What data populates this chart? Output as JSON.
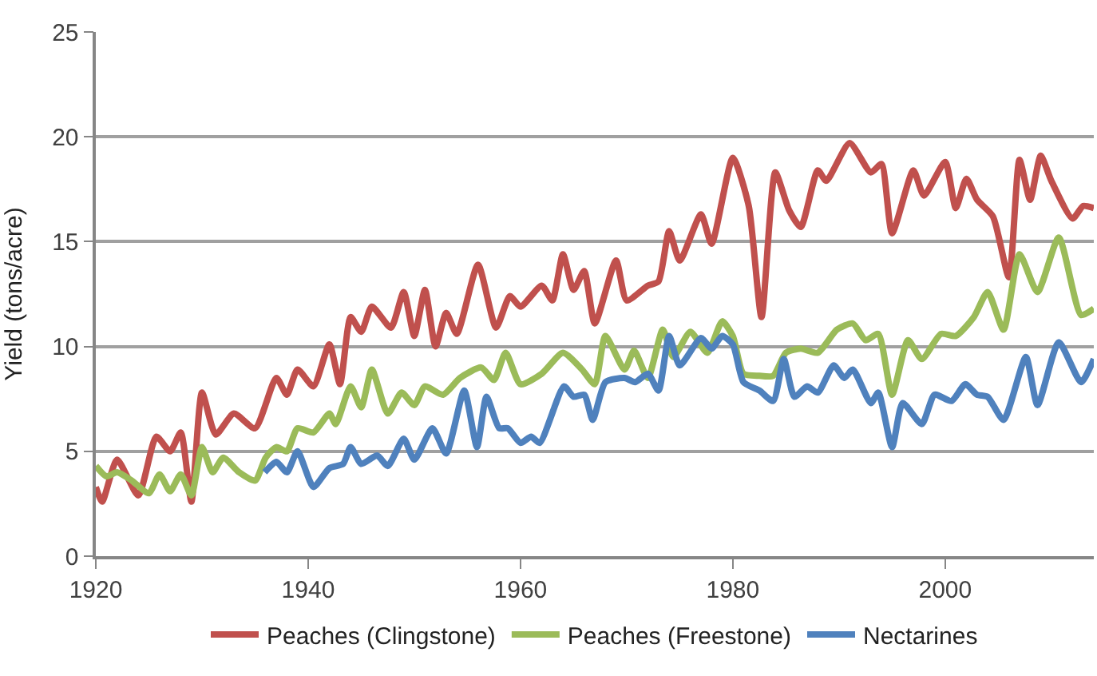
{
  "chart_data": {
    "type": "line",
    "ylabel": "Yield (tons/acre)",
    "xlim": [
      1920,
      2014
    ],
    "xticks": [
      1920,
      1940,
      1960,
      1980,
      2000
    ],
    "ylim": [
      0,
      25
    ],
    "yticks": [
      0,
      5,
      10,
      15,
      20,
      25
    ],
    "grid": "y",
    "legend": "bottom",
    "line_style": "solid",
    "marker": "none",
    "series": [
      {
        "name": "Peaches (Clingstone)",
        "color": "#c0504d",
        "x": [
          1920,
          1920.6,
          1922,
          1924,
          1925.7,
          1927,
          1928,
          1929,
          1930,
          1931.3,
          1933,
          1935,
          1937,
          1938,
          1939,
          1940.5,
          1942,
          1943,
          1944,
          1945,
          1946,
          1947.8,
          1949,
          1950,
          1951,
          1952,
          1953,
          1954,
          1956,
          1957.7,
          1959,
          1960,
          1962,
          1963,
          1964,
          1965,
          1966,
          1967,
          1969,
          1970,
          1972,
          1973,
          1974,
          1975,
          1977,
          1978,
          1980,
          1981.5,
          1982.7,
          1984,
          1985.3,
          1986.4,
          1988,
          1988.8,
          1991,
          1993,
          1994,
          1995,
          1997,
          1998,
          2000,
          2001,
          2002,
          2003,
          2004.5,
          2006,
          2007,
          2008,
          2009,
          2010,
          2012,
          2013,
          2014
        ],
        "values": [
          3.3,
          2.6,
          4.6,
          2.9,
          5.7,
          5.0,
          5.9,
          2.6,
          7.8,
          5.8,
          6.8,
          6.1,
          8.5,
          7.7,
          8.9,
          8.1,
          10.1,
          8.2,
          11.4,
          10.7,
          11.9,
          10.9,
          12.6,
          10.5,
          12.7,
          10.0,
          11.6,
          10.6,
          13.9,
          10.9,
          12.4,
          11.9,
          12.9,
          12.2,
          14.4,
          12.7,
          13.6,
          11.1,
          14.1,
          12.2,
          12.9,
          13.1,
          15.5,
          14.1,
          16.3,
          14.9,
          19.0,
          16.7,
          11.4,
          18.3,
          16.5,
          15.7,
          18.4,
          17.9,
          19.7,
          18.3,
          18.7,
          15.4,
          18.4,
          17.2,
          18.8,
          16.6,
          18.0,
          17.0,
          16.2,
          13.3,
          18.9,
          17.0,
          19.1,
          17.9,
          16.1,
          16.7,
          16.6
        ]
      },
      {
        "name": "Peaches (Freestone)",
        "color": "#9bbb59",
        "x": [
          1920,
          1921,
          1922,
          1923.4,
          1925,
          1926,
          1927,
          1928,
          1929,
          1930,
          1931,
          1932,
          1933.5,
          1935,
          1936,
          1937,
          1938,
          1939,
          1940.5,
          1942,
          1942.6,
          1944,
          1945,
          1946,
          1947.5,
          1948.8,
          1950,
          1951,
          1952.7,
          1954.3,
          1956.3,
          1957.5,
          1958.6,
          1960,
          1962,
          1964,
          1965.8,
          1967,
          1968,
          1969.8,
          1970.7,
          1972,
          1973.4,
          1974.4,
          1976,
          1977.6,
          1979,
          1980,
          1981,
          1982.5,
          1983.8,
          1985,
          1986.4,
          1988,
          1989.8,
          1991.3,
          1992.5,
          1993.7,
          1995,
          1996.5,
          1997.8,
          1999.6,
          2001,
          2002.7,
          2004,
          2005.5,
          2007,
          2008.7,
          2010.7,
          2012.8,
          2014
        ],
        "values": [
          4.3,
          3.8,
          4.0,
          3.6,
          3.0,
          3.9,
          3.1,
          3.9,
          2.9,
          5.2,
          4.0,
          4.7,
          4.0,
          3.6,
          4.7,
          5.2,
          5.0,
          6.1,
          5.9,
          6.8,
          6.3,
          8.1,
          7.1,
          8.9,
          6.8,
          7.8,
          7.2,
          8.1,
          7.7,
          8.5,
          9.0,
          8.4,
          9.7,
          8.2,
          8.7,
          9.7,
          8.9,
          8.2,
          10.5,
          8.9,
          9.8,
          8.5,
          10.8,
          9.5,
          10.7,
          9.7,
          11.2,
          10.5,
          8.7,
          8.6,
          8.6,
          9.7,
          9.9,
          9.7,
          10.8,
          11.1,
          10.3,
          10.6,
          7.7,
          10.3,
          9.4,
          10.6,
          10.5,
          11.4,
          12.6,
          10.8,
          14.4,
          12.6,
          15.2,
          11.5,
          11.8
        ]
      },
      {
        "name": "Nectarines",
        "color": "#4f81bd",
        "x": [
          1935.9,
          1937,
          1938,
          1939,
          1940.5,
          1942,
          1943.3,
          1944,
          1945,
          1946.5,
          1947.5,
          1949,
          1950,
          1951.7,
          1953,
          1954.7,
          1955.9,
          1956.8,
          1958,
          1958.8,
          1960,
          1961,
          1961.8,
          1964.1,
          1965,
          1966,
          1966.8,
          1968,
          1969.8,
          1970.8,
          1972,
          1973,
          1974,
          1975,
          1977,
          1978,
          1979,
          1980,
          1981,
          1982.5,
          1983.8,
          1984.8,
          1985.8,
          1987,
          1988,
          1989.5,
          1990.5,
          1991.3,
          1993,
          1993.7,
          1995,
          1996,
          1997.8,
          1999,
          2000.6,
          2001.9,
          2003,
          2004,
          2005.5,
          2007.6,
          2008.7,
          2010.7,
          2012.8,
          2014
        ],
        "values": [
          4.0,
          4.5,
          4.0,
          5.0,
          3.3,
          4.2,
          4.4,
          5.2,
          4.4,
          4.8,
          4.3,
          5.6,
          4.6,
          6.1,
          4.9,
          7.9,
          5.2,
          7.6,
          6.1,
          6.1,
          5.4,
          5.7,
          5.4,
          8.1,
          7.6,
          7.7,
          6.5,
          8.3,
          8.5,
          8.3,
          8.7,
          7.9,
          10.5,
          9.1,
          10.4,
          9.9,
          10.5,
          10.1,
          8.3,
          7.9,
          7.4,
          9.4,
          7.6,
          8.1,
          7.8,
          9.1,
          8.5,
          8.9,
          7.3,
          7.8,
          5.2,
          7.3,
          6.3,
          7.7,
          7.4,
          8.2,
          7.7,
          7.6,
          6.5,
          9.5,
          7.2,
          10.2,
          8.3,
          9.4
        ]
      }
    ]
  }
}
